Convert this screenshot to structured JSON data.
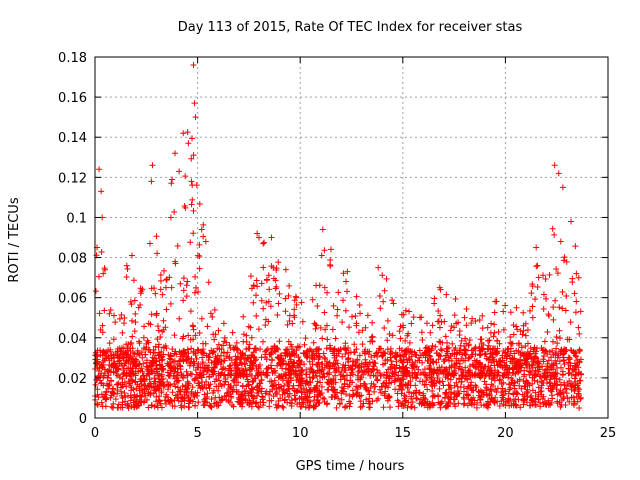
{
  "chart_data": {
    "type": "scatter",
    "title": "Day 113 of 2015, Rate Of TEC Index for receiver stas",
    "xlabel": "GPS time / hours",
    "ylabel": "ROTI / TECUs",
    "xlim": [
      0,
      25
    ],
    "ylim": [
      0,
      0.18
    ],
    "xticks": [
      "0",
      "5",
      "10",
      "15",
      "20",
      "25"
    ],
    "yticks": [
      "0",
      "0.02",
      "0.04",
      "0.06",
      "0.08",
      "0.1",
      "0.12",
      "0.14",
      "0.16",
      "0.18"
    ],
    "xtick_values": [
      0,
      5,
      10,
      15,
      20,
      25
    ],
    "ytick_values": [
      0,
      0.02,
      0.04,
      0.06,
      0.08,
      0.1,
      0.12,
      0.14,
      0.16,
      0.18
    ],
    "grid": true,
    "marker": "+",
    "color": "#ff0000",
    "x_coverage": [
      0,
      23.7
    ],
    "baseline_range": [
      0.005,
      0.035
    ],
    "envelope": [
      {
        "x": 0.0,
        "y": 0.09
      },
      {
        "x": 0.2,
        "y": 0.125
      },
      {
        "x": 0.5,
        "y": 0.075
      },
      {
        "x": 1.0,
        "y": 0.05
      },
      {
        "x": 1.7,
        "y": 0.08
      },
      {
        "x": 2.5,
        "y": 0.06
      },
      {
        "x": 2.8,
        "y": 0.125
      },
      {
        "x": 3.3,
        "y": 0.07
      },
      {
        "x": 3.8,
        "y": 0.13
      },
      {
        "x": 4.4,
        "y": 0.14
      },
      {
        "x": 4.8,
        "y": 0.176
      },
      {
        "x": 5.3,
        "y": 0.095
      },
      {
        "x": 6.0,
        "y": 0.05
      },
      {
        "x": 7.0,
        "y": 0.04
      },
      {
        "x": 8.0,
        "y": 0.092
      },
      {
        "x": 8.6,
        "y": 0.085
      },
      {
        "x": 9.3,
        "y": 0.07
      },
      {
        "x": 10.5,
        "y": 0.055
      },
      {
        "x": 11.1,
        "y": 0.095
      },
      {
        "x": 12.3,
        "y": 0.07
      },
      {
        "x": 13.5,
        "y": 0.05
      },
      {
        "x": 14.0,
        "y": 0.075
      },
      {
        "x": 15.0,
        "y": 0.055
      },
      {
        "x": 16.0,
        "y": 0.05
      },
      {
        "x": 16.8,
        "y": 0.065
      },
      {
        "x": 17.4,
        "y": 0.065
      },
      {
        "x": 18.5,
        "y": 0.05
      },
      {
        "x": 19.6,
        "y": 0.06
      },
      {
        "x": 20.3,
        "y": 0.055
      },
      {
        "x": 21.0,
        "y": 0.06
      },
      {
        "x": 21.5,
        "y": 0.085
      },
      {
        "x": 22.0,
        "y": 0.1
      },
      {
        "x": 22.5,
        "y": 0.126
      },
      {
        "x": 23.0,
        "y": 0.085
      },
      {
        "x": 23.2,
        "y": 0.098
      },
      {
        "x": 23.7,
        "y": 0.07
      }
    ],
    "sample_points": [
      {
        "x": 0.1,
        "y": 0.085
      },
      {
        "x": 0.2,
        "y": 0.124
      },
      {
        "x": 0.3,
        "y": 0.113
      },
      {
        "x": 0.35,
        "y": 0.1
      },
      {
        "x": 0.4,
        "y": 0.072
      },
      {
        "x": 0.7,
        "y": 0.052
      },
      {
        "x": 1.55,
        "y": 0.076
      },
      {
        "x": 1.8,
        "y": 0.081
      },
      {
        "x": 2.8,
        "y": 0.126
      },
      {
        "x": 2.75,
        "y": 0.118
      },
      {
        "x": 3.7,
        "y": 0.1
      },
      {
        "x": 3.9,
        "y": 0.132
      },
      {
        "x": 4.1,
        "y": 0.123
      },
      {
        "x": 4.3,
        "y": 0.142
      },
      {
        "x": 4.55,
        "y": 0.137
      },
      {
        "x": 4.8,
        "y": 0.176
      },
      {
        "x": 4.85,
        "y": 0.157
      },
      {
        "x": 4.9,
        "y": 0.15
      },
      {
        "x": 4.7,
        "y": 0.118
      },
      {
        "x": 5.2,
        "y": 0.094
      },
      {
        "x": 5.4,
        "y": 0.088
      },
      {
        "x": 7.9,
        "y": 0.092
      },
      {
        "x": 8.6,
        "y": 0.09
      },
      {
        "x": 9.3,
        "y": 0.074
      },
      {
        "x": 11.1,
        "y": 0.094
      },
      {
        "x": 11.05,
        "y": 0.081
      },
      {
        "x": 12.3,
        "y": 0.073
      },
      {
        "x": 13.8,
        "y": 0.075
      },
      {
        "x": 16.8,
        "y": 0.065
      },
      {
        "x": 19.5,
        "y": 0.058
      },
      {
        "x": 21.5,
        "y": 0.085
      },
      {
        "x": 22.4,
        "y": 0.126
      },
      {
        "x": 22.6,
        "y": 0.122
      },
      {
        "x": 22.8,
        "y": 0.115
      },
      {
        "x": 23.2,
        "y": 0.098
      }
    ]
  }
}
